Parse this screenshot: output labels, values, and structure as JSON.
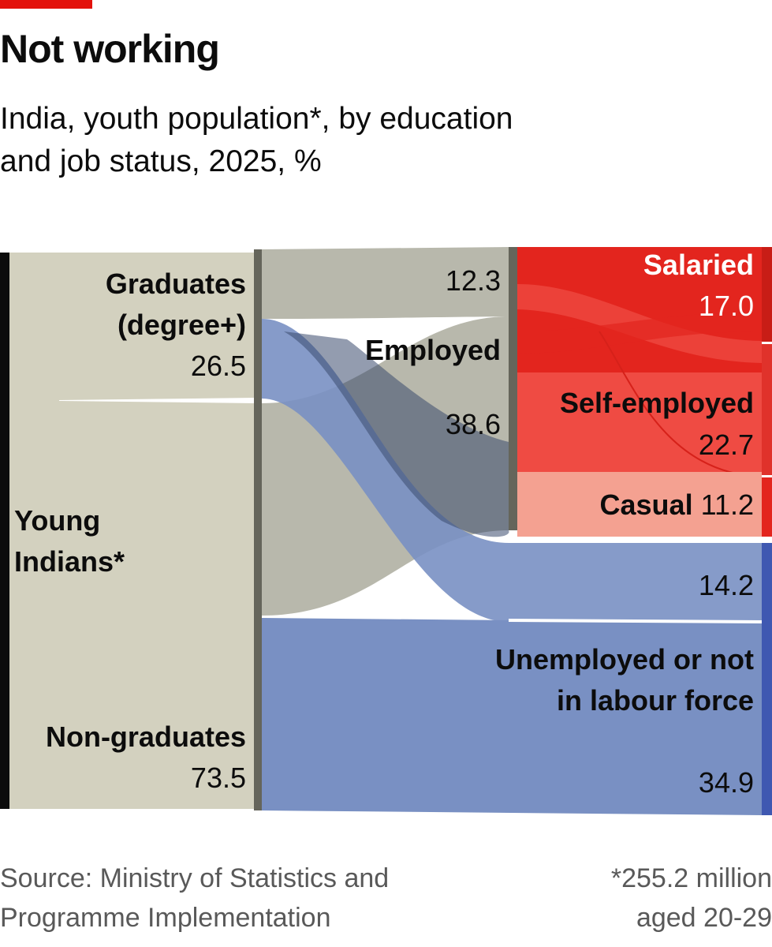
{
  "title": "Not working",
  "subtitle": [
    "India, youth population*, by education",
    "and job status, 2025, %"
  ],
  "source": [
    "Source: Ministry of Statistics and",
    "Programme Implementation"
  ],
  "footnote": [
    "*255.2 million",
    "aged 20-29"
  ],
  "colors": {
    "brand_red": "#e3120b",
    "population": "#d3d1bf",
    "employed": "#b8b8ac",
    "not_working": "#7990c3",
    "salaried": "#e3251e",
    "self_employed": "#ef4b43",
    "casual": "#f4a191",
    "divider": "#65655b"
  },
  "labels": {
    "young_indians": [
      "Young",
      "Indians*"
    ],
    "graduates": [
      "Graduates",
      "(degree+)"
    ],
    "graduates_value": "26.5",
    "non_graduates": "Non-graduates",
    "non_graduates_value": "73.5",
    "employed": "Employed",
    "employed_grad_value": "12.3",
    "employed_value": "38.6",
    "salaried": "Salaried",
    "salaried_value": "17.0",
    "self_employed": "Self-employed",
    "self_employed_value": "22.7",
    "casual": "Casual",
    "casual_value": "11.2",
    "unemployed": [
      "Unemployed or not",
      "in labour force"
    ],
    "unemployed_grad_value": "14.2",
    "unemployed_value": "34.9"
  },
  "chart_data": {
    "type": "sankey",
    "unit": "%",
    "total_population_millions": 255.2,
    "nodes": [
      {
        "id": "young_indians",
        "label": "Young Indians*",
        "value": 100
      },
      {
        "id": "graduates",
        "label": "Graduates (degree+)",
        "value": 26.5
      },
      {
        "id": "non_graduates",
        "label": "Non-graduates",
        "value": 73.5
      },
      {
        "id": "employed",
        "label": "Employed",
        "value": 51.0
      },
      {
        "id": "unemployed",
        "label": "Unemployed or not in labour force",
        "value": 49.0
      },
      {
        "id": "salaried",
        "label": "Salaried",
        "value": 17.0
      },
      {
        "id": "self_employed",
        "label": "Self-employed",
        "value": 22.7
      },
      {
        "id": "casual",
        "label": "Casual",
        "value": 11.2
      }
    ],
    "links": [
      {
        "source": "young_indians",
        "target": "graduates",
        "value": 26.5
      },
      {
        "source": "young_indians",
        "target": "non_graduates",
        "value": 73.5
      },
      {
        "source": "graduates",
        "target": "employed",
        "value": 12.3
      },
      {
        "source": "graduates",
        "target": "unemployed",
        "value": 14.2
      },
      {
        "source": "non_graduates",
        "target": "employed",
        "value": 38.6
      },
      {
        "source": "non_graduates",
        "target": "unemployed",
        "value": 34.9
      },
      {
        "source": "employed",
        "target": "salaried",
        "value": 17.0
      },
      {
        "source": "employed",
        "target": "self_employed",
        "value": 22.7
      },
      {
        "source": "employed",
        "target": "casual",
        "value": 11.2
      }
    ]
  }
}
